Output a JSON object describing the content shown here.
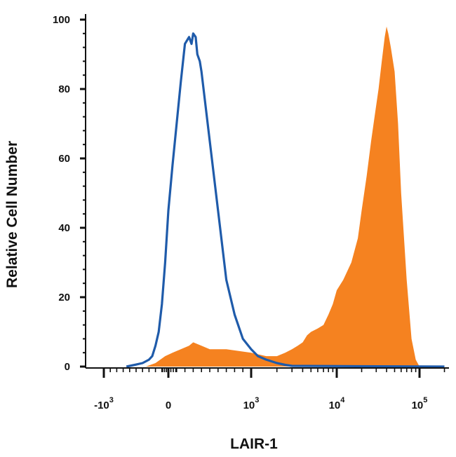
{
  "chart_data": {
    "type": "area",
    "title": "",
    "xlabel": "LAIR-1",
    "ylabel": "Relative Cell Number",
    "x_scale": "biexponential",
    "x_ticks": [
      {
        "value": -1000,
        "base": "-10",
        "exp": "3"
      },
      {
        "value": 0,
        "base": "0",
        "exp": ""
      },
      {
        "value": 1000,
        "base": "10",
        "exp": "3"
      },
      {
        "value": 10000,
        "base": "10",
        "exp": "4"
      },
      {
        "value": 100000,
        "base": "10",
        "exp": "5"
      }
    ],
    "y_ticks": [
      "0",
      "20",
      "40",
      "60",
      "80",
      "100"
    ],
    "ylim": [
      0,
      100
    ],
    "grid": false,
    "legend": "none",
    "series": [
      {
        "style": "filled",
        "color": "#F58220",
        "x": [
          -350,
          -200,
          -50,
          50,
          150,
          250,
          300,
          400,
          500,
          700,
          1000,
          1500,
          2000,
          2500,
          3000,
          3500,
          4000,
          4500,
          5000,
          6000,
          7000,
          8000,
          9000,
          10000,
          12000,
          15000,
          18000,
          20000,
          23000,
          26000,
          29000,
          32000,
          35000,
          38000,
          40000,
          42000,
          45000,
          50000,
          55000,
          60000,
          70000,
          80000,
          90000,
          100000
        ],
        "y": [
          0,
          1,
          3,
          4,
          5,
          6,
          7,
          6,
          5,
          5,
          4,
          3,
          3,
          4,
          5,
          6,
          7,
          9,
          10,
          11,
          12,
          15,
          18,
          22,
          25,
          30,
          37,
          45,
          55,
          65,
          73,
          80,
          88,
          95,
          98,
          96,
          92,
          85,
          70,
          50,
          25,
          8,
          2,
          0
        ]
      },
      {
        "style": "line",
        "color": "#1F5BAA",
        "x": [
          -650,
          -520,
          -400,
          -300,
          -250,
          -200,
          -150,
          -100,
          -50,
          0,
          50,
          100,
          150,
          200,
          250,
          280,
          300,
          330,
          350,
          380,
          400,
          450,
          500,
          550,
          600,
          650,
          700,
          800,
          900,
          1000,
          1200,
          1500,
          2000,
          2500,
          3000,
          200000
        ],
        "y": [
          0,
          0.5,
          1,
          2,
          3,
          6,
          10,
          18,
          30,
          45,
          58,
          70,
          82,
          93,
          95,
          93,
          96,
          95,
          90,
          88,
          85,
          75,
          65,
          55,
          45,
          35,
          25,
          15,
          8,
          5,
          3,
          2,
          1,
          0.5,
          0.2,
          0
        ]
      }
    ]
  }
}
